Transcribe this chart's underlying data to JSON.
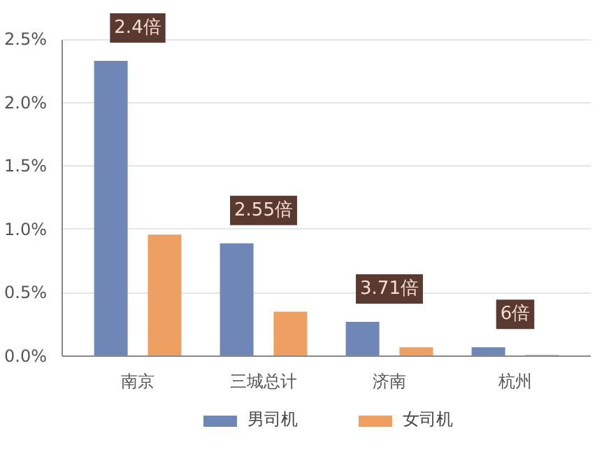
{
  "chart_data": {
    "type": "bar",
    "categories": [
      "南京",
      "三城总计",
      "济南",
      "杭州"
    ],
    "series": [
      {
        "name": "男司机",
        "color": "#6f87b6",
        "values": [
          2.33,
          0.89,
          0.27,
          0.07
        ]
      },
      {
        "name": "女司机",
        "color": "#eea062",
        "values": [
          0.96,
          0.35,
          0.07,
          0.01
        ]
      }
    ],
    "ylim": [
      0,
      2.5
    ],
    "yticks": [
      {
        "value": 0,
        "label": "0.0%"
      },
      {
        "value": 0.5,
        "label": "0.5%"
      },
      {
        "value": 1,
        "label": "1.0%"
      },
      {
        "value": 1.5,
        "label": "1.5%"
      },
      {
        "value": 2,
        "label": "2.0%"
      },
      {
        "value": 2.5,
        "label": "2.5%"
      }
    ],
    "grid": "y",
    "legend": "bottom",
    "annotations": [
      "2.4倍",
      "2.55倍",
      "3.71倍",
      "6倍"
    ]
  }
}
